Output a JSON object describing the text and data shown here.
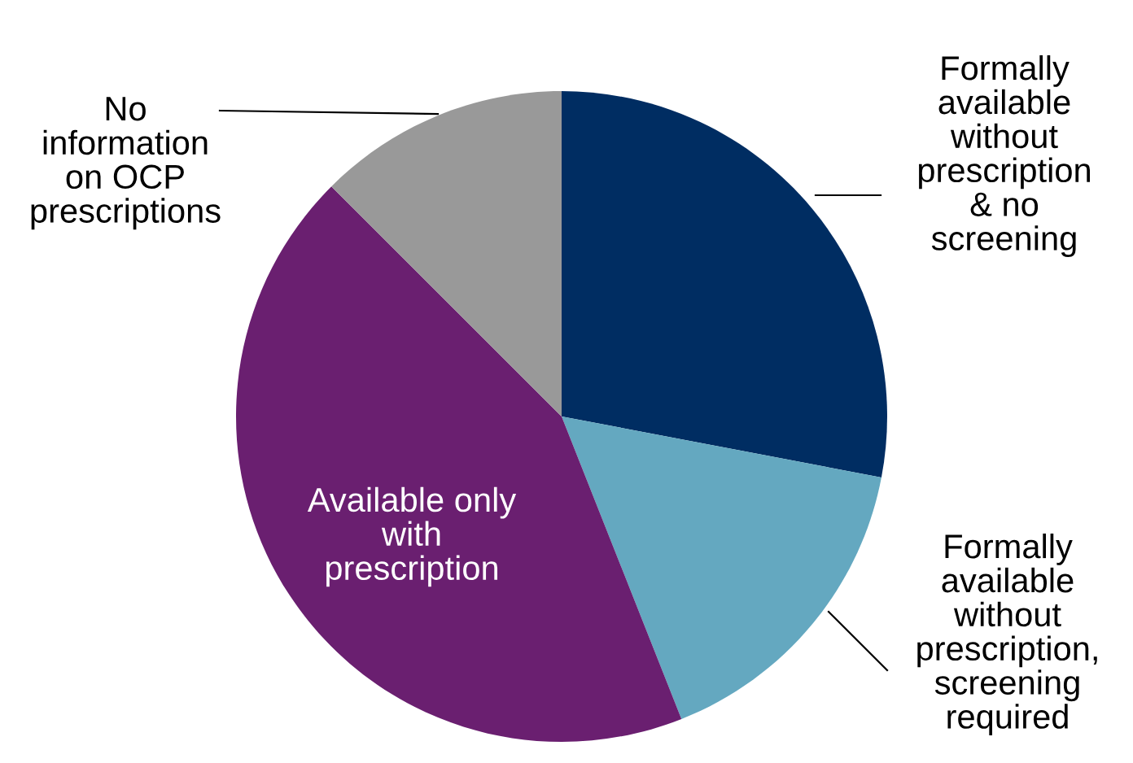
{
  "chart_data": {
    "type": "pie",
    "categories": [
      "Formally available without prescription & no screening",
      "Formally available without prescription, screening required",
      "Available only with prescription",
      "No information on OCP prescriptions"
    ],
    "values": [
      28,
      16,
      43.5,
      12.5
    ],
    "colors": [
      "#002d62",
      "#64a8c0",
      "#6a1f70",
      "#999999"
    ]
  }
}
